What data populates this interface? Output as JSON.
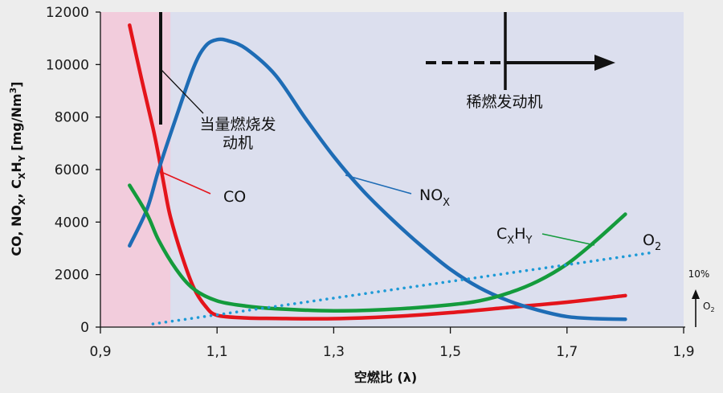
{
  "chart_data": {
    "type": "line",
    "xlabel": "空燃比 (λ)",
    "ylabel_parts": [
      "CO, NO",
      "X",
      ", C",
      "X",
      "H",
      "Y",
      " [mg/Nm",
      "3",
      "]"
    ],
    "xlim": [
      0.9,
      1.9
    ],
    "ylim": [
      0,
      12000
    ],
    "x_ticks": [
      0.9,
      1.1,
      1.3,
      1.5,
      1.7,
      1.9
    ],
    "x_tick_labels": [
      "0,9",
      "1,1",
      "1,3",
      "1,5",
      "1,7",
      "1,9"
    ],
    "y_ticks": [
      0,
      2000,
      4000,
      6000,
      8000,
      10000,
      12000
    ],
    "y_tick_labels": [
      "0",
      "2000",
      "4000",
      "6000",
      "8000",
      "10000",
      "12000"
    ],
    "grid": false,
    "colors": {
      "background": "#ededed",
      "plot_area": "#dcdfee",
      "rich_zone": "#f2ccdc",
      "co": "#e4141b",
      "nox": "#1e6cb5",
      "cxhy": "#149b3c",
      "o2": "#1e9ad6"
    },
    "rich_zone_x": [
      0.9,
      1.02
    ],
    "series": [
      {
        "name": "CO",
        "label_parts": [
          "CO"
        ],
        "color_key": "co",
        "x": [
          0.95,
          0.97,
          0.99,
          1.0,
          1.01,
          1.02,
          1.04,
          1.06,
          1.08,
          1.1,
          1.15,
          1.2,
          1.3,
          1.4,
          1.5,
          1.6,
          1.7,
          1.8
        ],
        "y": [
          11500,
          9500,
          7600,
          6500,
          5300,
          4200,
          2700,
          1500,
          800,
          450,
          350,
          330,
          320,
          400,
          550,
          750,
          950,
          1200
        ]
      },
      {
        "name": "NOX",
        "label_parts": [
          "NO",
          "X"
        ],
        "color_key": "nox",
        "x": [
          0.95,
          0.98,
          1.0,
          1.03,
          1.06,
          1.08,
          1.1,
          1.12,
          1.15,
          1.2,
          1.25,
          1.3,
          1.35,
          1.4,
          1.45,
          1.5,
          1.55,
          1.6,
          1.65,
          1.7,
          1.75,
          1.8
        ],
        "y": [
          3100,
          4500,
          6000,
          8000,
          9900,
          10700,
          10950,
          10900,
          10600,
          9600,
          8000,
          6500,
          5200,
          4100,
          3100,
          2200,
          1500,
          1000,
          650,
          400,
          320,
          300
        ]
      },
      {
        "name": "CXHY",
        "label_parts": [
          "C",
          "X",
          "H",
          "Y"
        ],
        "color_key": "cxhy",
        "x": [
          0.95,
          0.98,
          1.0,
          1.03,
          1.06,
          1.1,
          1.15,
          1.2,
          1.3,
          1.4,
          1.5,
          1.55,
          1.6,
          1.65,
          1.7,
          1.75,
          1.8
        ],
        "y": [
          5400,
          4300,
          3300,
          2200,
          1450,
          1000,
          800,
          700,
          620,
          680,
          850,
          1000,
          1300,
          1750,
          2400,
          3300,
          4300
        ]
      },
      {
        "name": "O2",
        "label_parts": [
          "O",
          "2"
        ],
        "color_key": "o2",
        "x": [
          0.99,
          1.85
        ],
        "y": [
          120,
          2850
        ]
      }
    ],
    "annotations": {
      "stoich_line": "当量燃烧发",
      "stoich_line2": "动机",
      "lean": "稀燃发动机",
      "o2_scale": "10%",
      "o2_scale_label_parts": [
        "O",
        "2"
      ]
    }
  }
}
